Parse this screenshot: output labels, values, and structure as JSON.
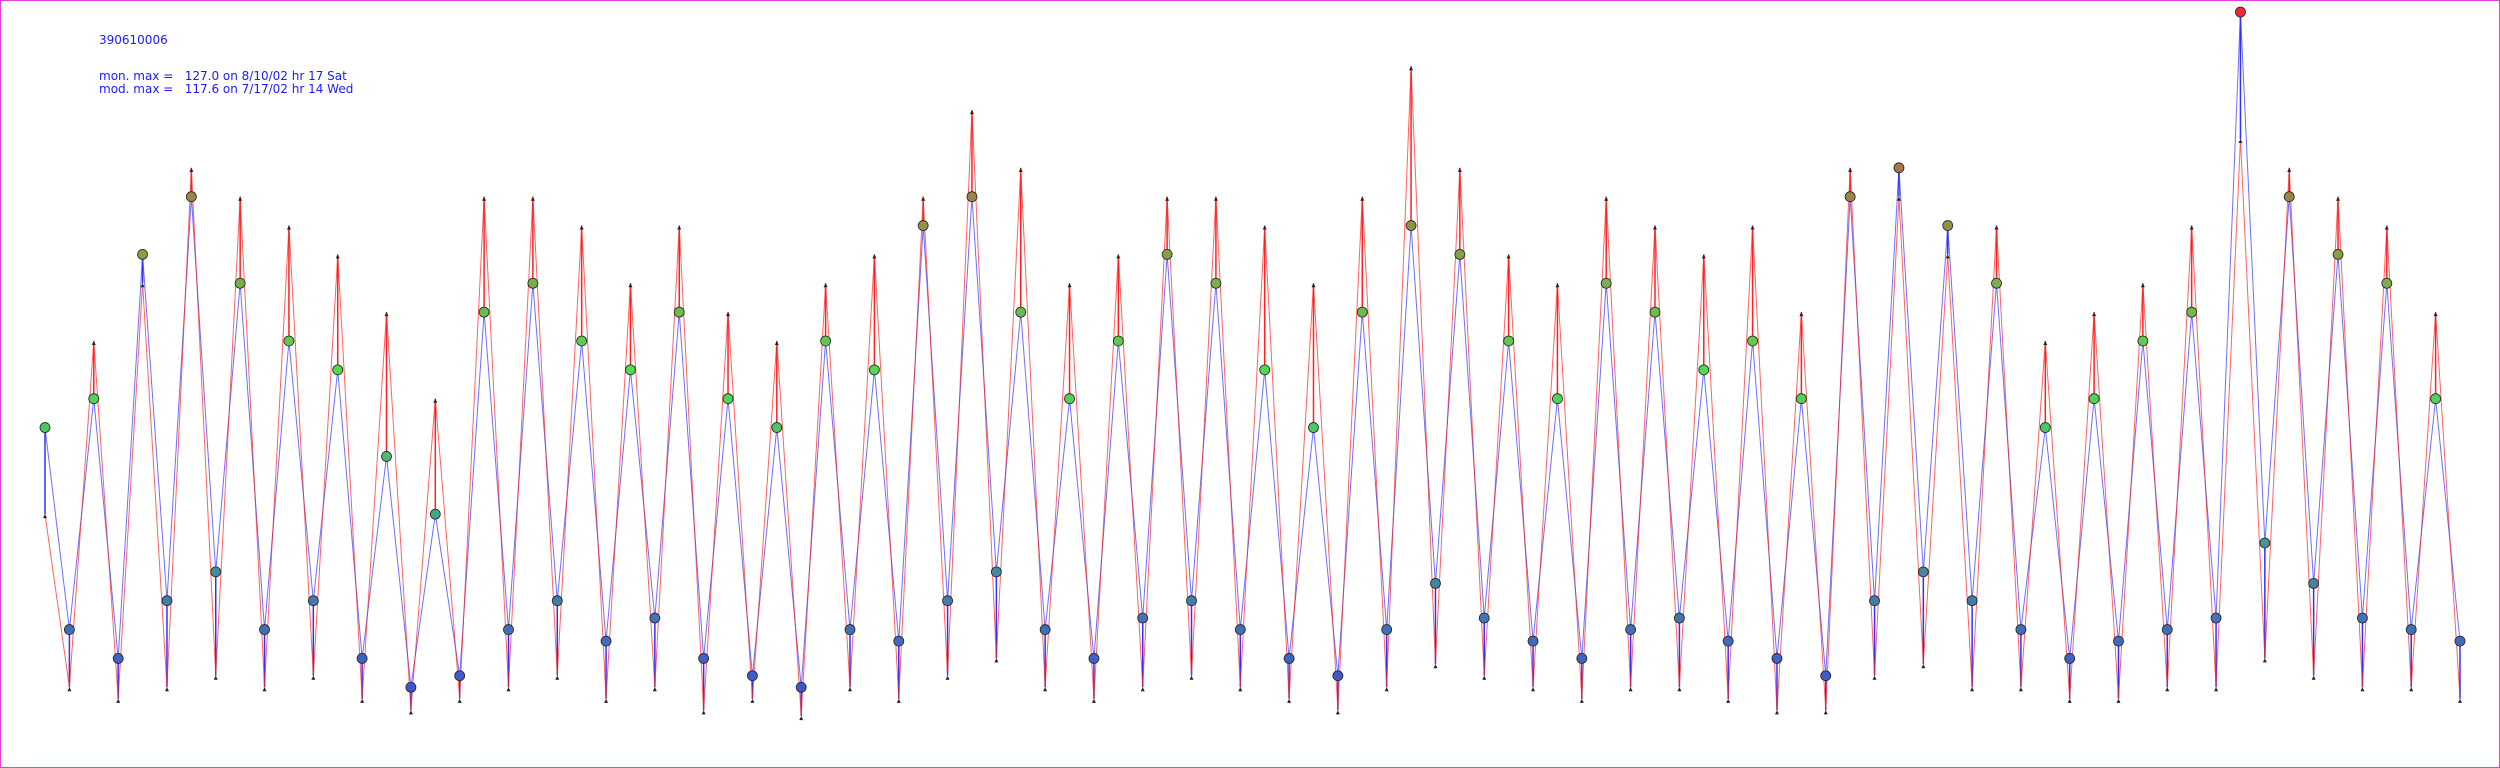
{
  "chart_data": {
    "type": "line",
    "title": "390610006",
    "annotations": [
      "mon. max =   127.0 on 8/10/02 hr 17 Sat",
      "mod. max =   117.6 on 7/17/02 hr 14 Wed"
    ],
    "series": [
      {
        "color": "#3030ff",
        "values": [
          55,
          20,
          60,
          15,
          85,
          25,
          95,
          30,
          80,
          20,
          70,
          25,
          65,
          15,
          50,
          10,
          40,
          12,
          75,
          20,
          80,
          25,
          70,
          18,
          65,
          22,
          75,
          15,
          60,
          12,
          55,
          10,
          70,
          20,
          65,
          18,
          90,
          25,
          95,
          30,
          75,
          20,
          60,
          15,
          70,
          22,
          85,
          25,
          80,
          20,
          65,
          15,
          55,
          12,
          75,
          20,
          90,
          28,
          85,
          22,
          70,
          18,
          60,
          15,
          80,
          20,
          75,
          22,
          65,
          18,
          70,
          15,
          60,
          12,
          95,
          25,
          100,
          30,
          90,
          25,
          80,
          20,
          55,
          15,
          60,
          18,
          70,
          20,
          75,
          22,
          127,
          35,
          95,
          28,
          85,
          22,
          80,
          20,
          60,
          18
        ]
      },
      {
        "color": "#ff2020",
        "values": [
          40,
          10,
          70,
          8,
          80,
          10,
          100,
          12,
          95,
          10,
          90,
          12,
          85,
          8,
          75,
          6,
          60,
          8,
          95,
          10,
          95,
          12,
          90,
          8,
          80,
          10,
          90,
          6,
          75,
          8,
          70,
          5,
          80,
          10,
          85,
          8,
          95,
          12,
          110,
          15,
          100,
          10,
          80,
          8,
          85,
          10,
          95,
          12,
          95,
          10,
          90,
          8,
          80,
          6,
          95,
          10,
          117.6,
          14,
          100,
          12,
          85,
          10,
          80,
          8,
          95,
          10,
          90,
          10,
          85,
          8,
          90,
          6,
          75,
          6,
          100,
          12,
          95,
          14,
          85,
          10,
          90,
          10,
          70,
          8,
          75,
          8,
          80,
          10,
          90,
          10,
          105,
          15,
          100,
          12,
          95,
          10,
          90,
          10,
          75,
          8
        ]
      }
    ]
  }
}
